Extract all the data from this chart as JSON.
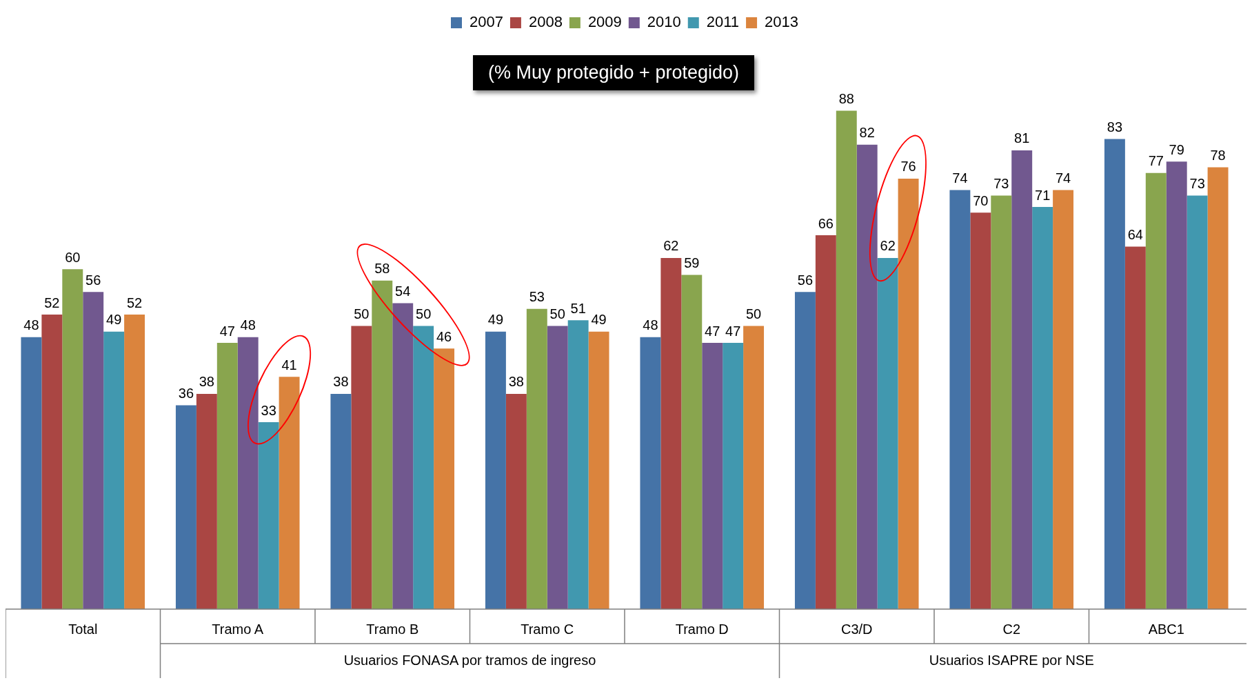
{
  "chart_data": {
    "type": "bar",
    "title": "(% Muy protegido + protegido)",
    "categories": [
      "Total",
      "Tramo A",
      "Tramo B",
      "Tramo C",
      "Tramo D",
      "C3/D",
      "C2",
      "ABC1"
    ],
    "series": [
      {
        "name": "2007",
        "color": "#4573a7",
        "values": [
          48,
          36,
          38,
          49,
          48,
          56,
          74,
          83
        ]
      },
      {
        "name": "2008",
        "color": "#aa4643",
        "values": [
          52,
          38,
          50,
          38,
          62,
          66,
          70,
          64
        ]
      },
      {
        "name": "2009",
        "color": "#89a54e",
        "values": [
          60,
          47,
          58,
          53,
          59,
          88,
          73,
          77
        ]
      },
      {
        "name": "2010",
        "color": "#71588f",
        "values": [
          56,
          48,
          54,
          50,
          47,
          82,
          81,
          79
        ]
      },
      {
        "name": "2011",
        "color": "#4198af",
        "values": [
          49,
          33,
          50,
          51,
          47,
          62,
          71,
          73
        ]
      },
      {
        "name": "2013",
        "color": "#db843d",
        "values": [
          52,
          41,
          46,
          49,
          50,
          76,
          74,
          78
        ]
      }
    ],
    "data_labels": true,
    "legend": "top",
    "annotations": [
      "Usuarios FONASA por tramos de ingreso",
      "Usuarios ISAPRE por NSE"
    ]
  }
}
